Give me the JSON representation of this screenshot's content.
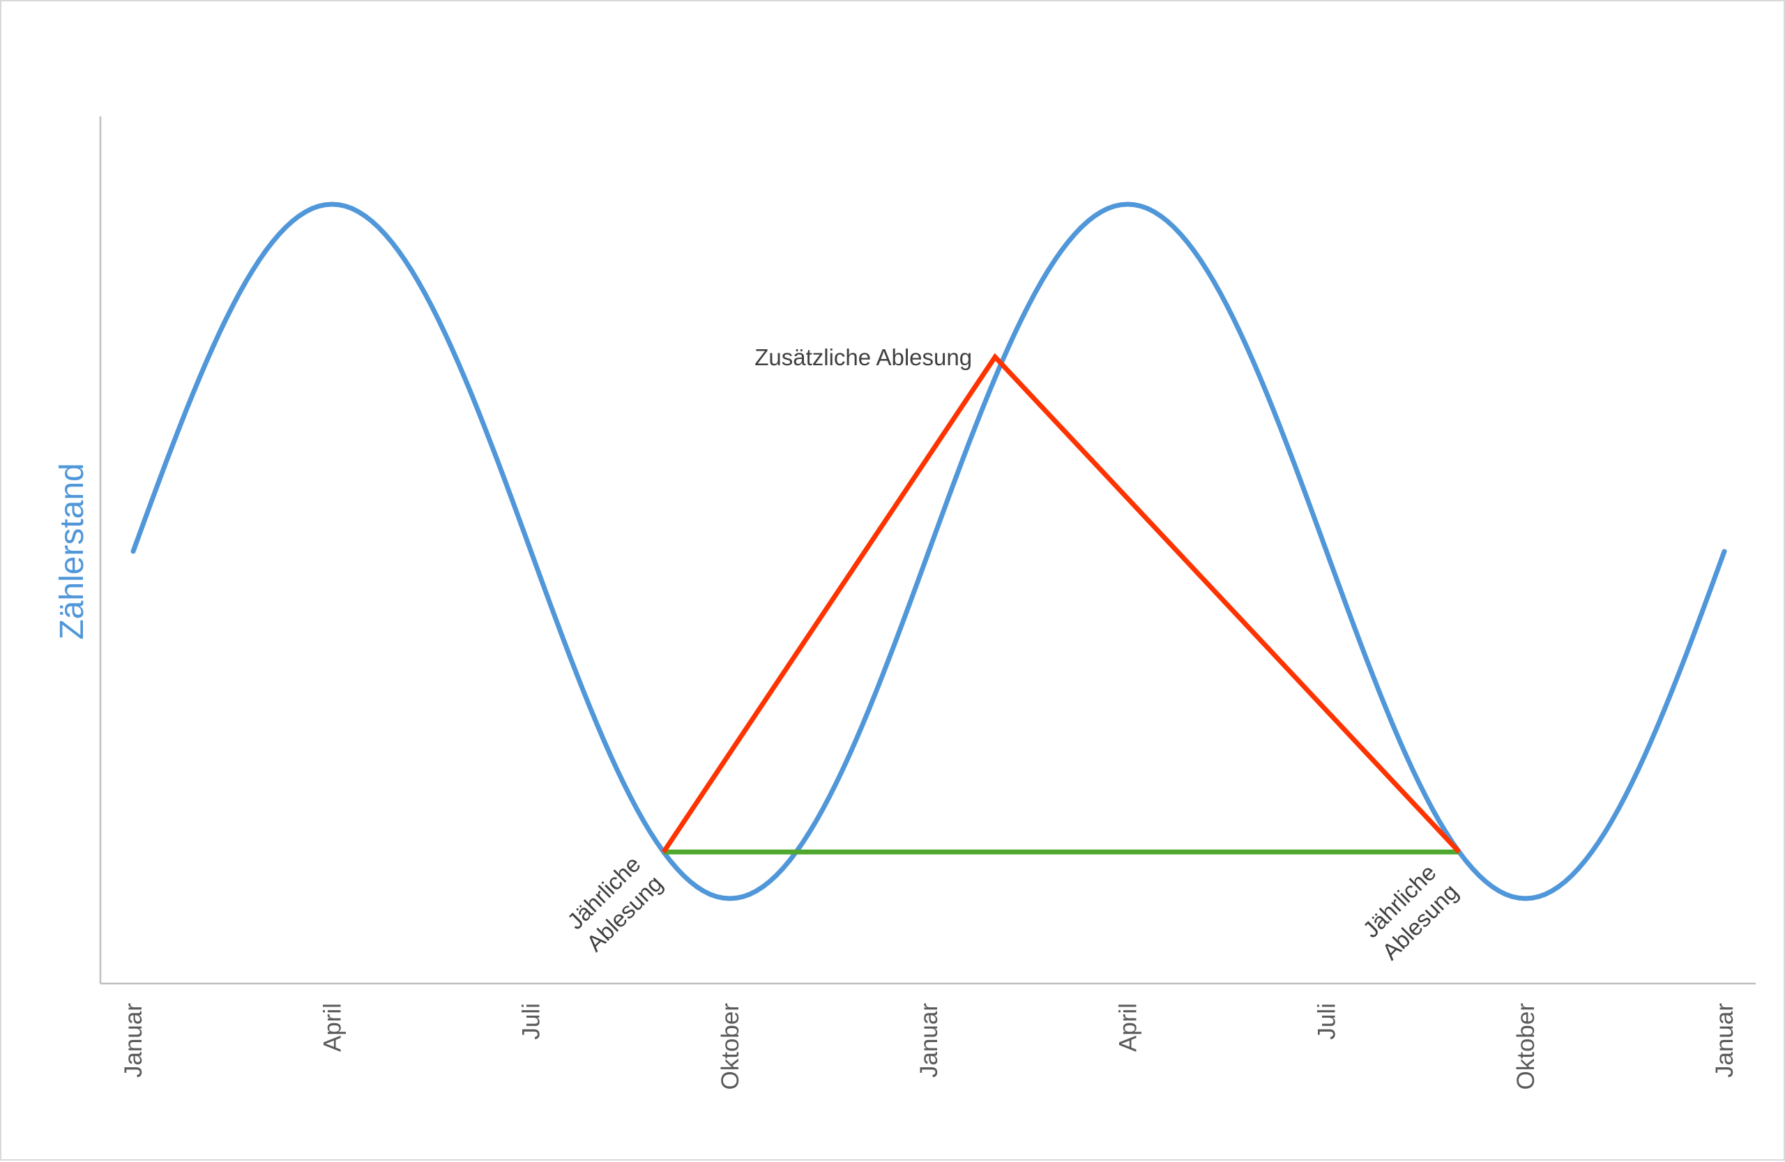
{
  "chart_data": {
    "type": "line",
    "title": "",
    "xlabel": "",
    "ylabel": "Zählerstand",
    "x_tick_labels": [
      "Januar",
      "April",
      "Juli",
      "Oktober",
      "Januar",
      "April",
      "Juli",
      "Oktober",
      "Januar"
    ],
    "x_tick_months": [
      0,
      3,
      6,
      9,
      12,
      15,
      18,
      21,
      24
    ],
    "xlim": [
      0,
      24
    ],
    "ylim": [
      -1.25,
      1.25
    ],
    "grid": false,
    "legend": "none",
    "series": [
      {
        "name": "Zählerstand",
        "kind": "sine",
        "period_months": 12,
        "amplitude": 1,
        "color": "#5097d9"
      },
      {
        "name": "Zusätzliche Ablesung",
        "points": [
          [
            8,
            -0.866
          ],
          [
            13,
            0.56
          ],
          [
            20,
            -0.866
          ]
        ],
        "color": "#ff3300"
      },
      {
        "name": "Jährliche Ablesung",
        "points": [
          [
            8,
            -0.866
          ],
          [
            20,
            -0.866
          ]
        ],
        "color": "#4ea72e"
      }
    ],
    "annotations": [
      {
        "text": "Zusätzliche Ablesung",
        "x": 13,
        "y": 0.56
      },
      {
        "text_lines": [
          "Jährliche",
          "Ablesung"
        ],
        "x": 8,
        "y": -0.866
      },
      {
        "text_lines": [
          "Jährliche",
          "Ablesung"
        ],
        "x": 20,
        "y": -0.866
      }
    ]
  }
}
